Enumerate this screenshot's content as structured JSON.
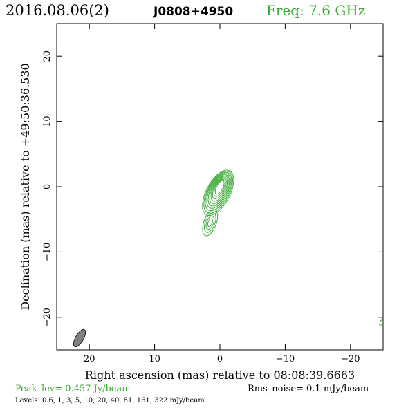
{
  "header": {
    "date": "2016.08.06(2)",
    "source": "J0808+4950",
    "freq": "Freq: 7.6 GHz"
  },
  "footer": {
    "peak": "Peak_lev=  0.457 Jy/beam",
    "rms": "Rms_noise=  0.1 mJy/beam",
    "levels": "Levels: 0.6,   1,   3,   5,   10,   20,   40,   81,  161,  322 mJy/beam"
  },
  "colors": {
    "contour": "#3aaa35",
    "frame": "#000000",
    "beam_fill": "#808080"
  },
  "chart_data": {
    "type": "contour",
    "xlabel": "Right ascension (mas) relative to 08:08:39.6663",
    "ylabel": "Declination (mas) relative to +49:50:36.530",
    "xlim": [
      25,
      -25
    ],
    "ylim": [
      -25,
      25
    ],
    "x_ticks": [
      20,
      10,
      0,
      -10,
      -20
    ],
    "x_tick_labels": [
      "20",
      "10",
      "0",
      "−10",
      "−20"
    ],
    "y_ticks": [
      20,
      10,
      0,
      -10,
      -20
    ],
    "y_tick_labels": [
      "20",
      "10",
      "0",
      "−10",
      "−20"
    ],
    "levels_mjy_per_beam": [
      0.6,
      1,
      3,
      5,
      10,
      20,
      40,
      81,
      161,
      322
    ],
    "peak_jy_per_beam": 0.457,
    "rms_noise_mjy_per_beam": 0.1,
    "core": {
      "x": 0,
      "y": 0
    },
    "jet_extension": {
      "x": 1.5,
      "y": -5.5
    },
    "beam": {
      "x": 21.5,
      "y": -23.2,
      "major_mas": 2.8,
      "minor_mas": 0.8,
      "pa_deg": -30
    }
  }
}
